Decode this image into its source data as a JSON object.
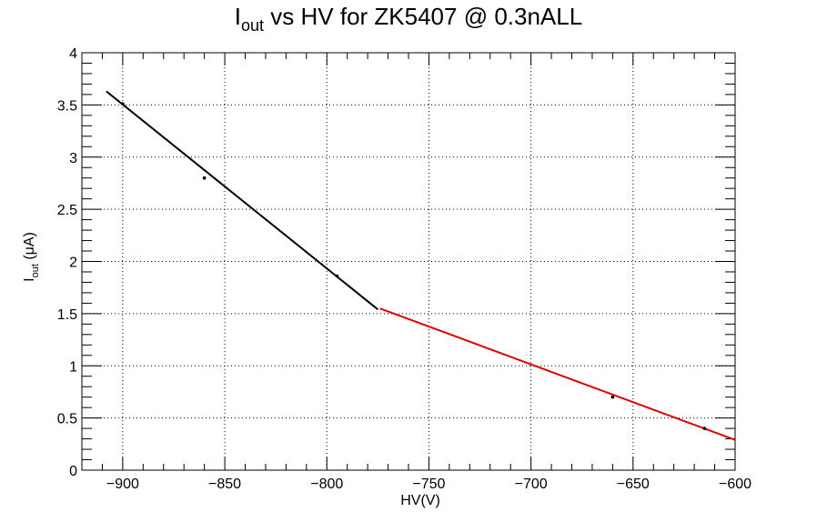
{
  "chart_data": {
    "type": "scatter",
    "title": {
      "main": "I",
      "sub": "out",
      "rest": " vs HV for ZK5407 @ 0.3nALL"
    },
    "xlabel": "HV(V)",
    "ylabel": {
      "main": "I",
      "sub": "out",
      "rest": " (μA)"
    },
    "xlim": [
      -920,
      -600
    ],
    "ylim": [
      0,
      4
    ],
    "grid": true,
    "x_ticks": [
      -900,
      -850,
      -800,
      -750,
      -700,
      -650,
      -600
    ],
    "x_tick_labels": [
      "−900",
      "−850",
      "−800",
      "−750",
      "−700",
      "−650",
      "−600"
    ],
    "y_ticks": [
      0,
      0.5,
      1,
      1.5,
      2,
      2.5,
      3,
      3.5,
      4
    ],
    "y_tick_labels": [
      "0",
      "0.5",
      "1",
      "1.5",
      "2",
      "2.5",
      "3",
      "3.5",
      "4"
    ],
    "points": [
      {
        "x": -900,
        "y": 3.51
      },
      {
        "x": -860,
        "y": 2.8
      },
      {
        "x": -795,
        "y": 1.86
      },
      {
        "x": -660,
        "y": 0.7
      },
      {
        "x": -615,
        "y": 0.4
      }
    ],
    "fits": [
      {
        "color": "#000000",
        "x": [
          -908,
          -775
        ],
        "y": [
          3.63,
          1.54
        ]
      },
      {
        "color": "#dd0000",
        "x": [
          -774,
          -600
        ],
        "y": [
          1.55,
          0.29
        ]
      }
    ]
  }
}
